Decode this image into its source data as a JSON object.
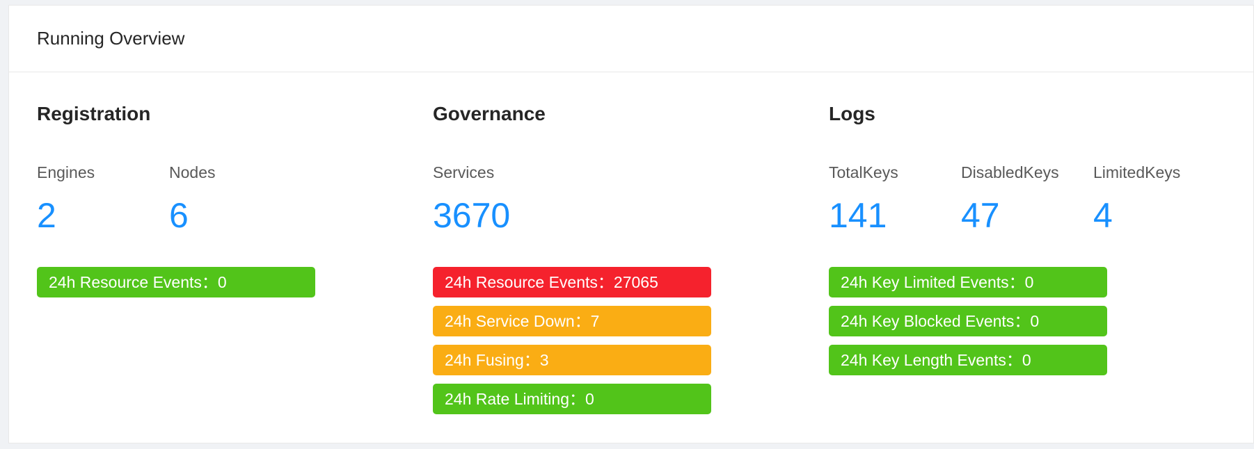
{
  "card": {
    "title": "Running Overview"
  },
  "registration": {
    "title": "Registration",
    "stats": [
      {
        "label": "Engines",
        "value": "2"
      },
      {
        "label": "Nodes",
        "value": "6"
      }
    ],
    "badges": [
      {
        "label": "24h Resource Events：0",
        "status": "green"
      }
    ]
  },
  "governance": {
    "title": "Governance",
    "stats": [
      {
        "label": "Services",
        "value": "3670"
      }
    ],
    "badges": [
      {
        "label": "24h Resource Events：27065",
        "status": "red"
      },
      {
        "label": "24h Service Down：7",
        "status": "orange"
      },
      {
        "label": "24h Fusing：3",
        "status": "orange"
      },
      {
        "label": "24h Rate Limiting：0",
        "status": "green"
      }
    ]
  },
  "logs": {
    "title": "Logs",
    "stats": [
      {
        "label": "TotalKeys",
        "value": "141"
      },
      {
        "label": "DisabledKeys",
        "value": "47"
      },
      {
        "label": "LimitedKeys",
        "value": "4"
      }
    ],
    "badges": [
      {
        "label": "24h Key Limited Events：0",
        "status": "green"
      },
      {
        "label": "24h Key Blocked Events：0",
        "status": "green"
      },
      {
        "label": "24h Key Length Events：0",
        "status": "green"
      }
    ]
  },
  "colors": {
    "accent": "#1890ff",
    "green": "#52c41a",
    "red": "#f5222d",
    "orange": "#faad14"
  }
}
